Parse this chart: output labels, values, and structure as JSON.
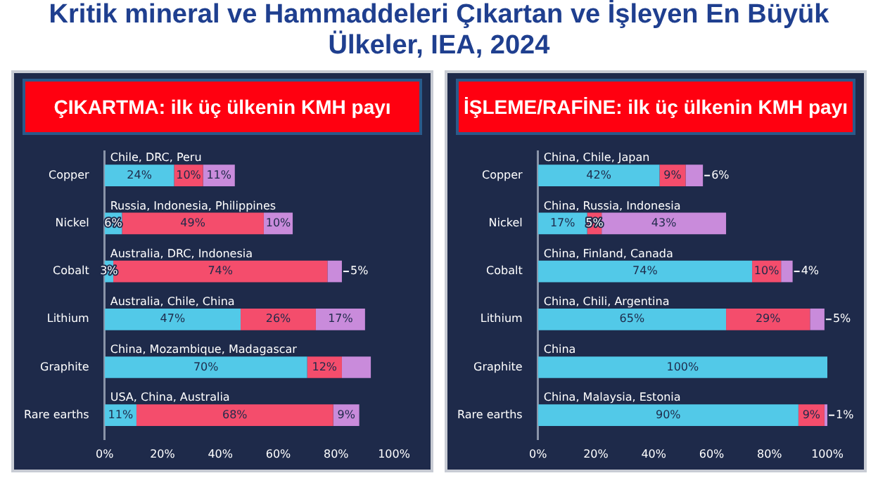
{
  "chart_data": [
    {
      "type": "other",
      "title": "Kritik mineral ve Hammaddeleri Çıkartan ve İşleyen En Büyük Ülkeler, IEA, 2024"
    },
    {
      "type": "bar",
      "title": "ÇIKARTMA: ilk üç ülkenin KMH payı",
      "orientation": "horizontal",
      "stacked": true,
      "categories": [
        "Copper",
        "Nickel",
        "Cobalt",
        "Lithium",
        "Graphite",
        "Rare earths"
      ],
      "series": [
        {
          "color": "#52c9e8",
          "values": [
            24,
            6,
            3,
            47,
            70,
            11
          ],
          "value_labels": [
            "24%",
            "6%",
            "3%",
            "47%",
            "70%",
            "11%"
          ]
        },
        {
          "color": "#f44d6c",
          "values": [
            10,
            49,
            74,
            26,
            12,
            68
          ],
          "value_labels": [
            "10%",
            "49%",
            "74%",
            "26%",
            "12%",
            "68%"
          ]
        },
        {
          "color": "#c98bdb",
          "values": [
            11,
            10,
            5,
            17,
            10,
            9
          ],
          "value_labels": [
            "11%",
            "10%",
            "5%",
            "17%",
            null,
            "9%"
          ]
        }
      ],
      "xlim": [
        0,
        100
      ],
      "xticks": [
        {
          "value": 0,
          "label": "0%"
        },
        {
          "value": 20,
          "label": "20%"
        },
        {
          "value": 40,
          "label": "40%"
        },
        {
          "value": 60,
          "label": "60%"
        },
        {
          "value": 80,
          "label": "80%"
        },
        {
          "value": 100,
          "label": "100%"
        }
      ],
      "annotations": [
        "Chile, DRC, Peru",
        "Russia, Indonesia, Philippines",
        "Australia, DRC, Indonesia",
        "Australia, Chile, China",
        "China, Mozambique, Madagascar",
        "USA, China, Australia"
      ]
    },
    {
      "type": "bar",
      "title": "İŞLEME/RAFİNE: ilk üç ülkenin KMH payı",
      "orientation": "horizontal",
      "stacked": true,
      "categories": [
        "Copper",
        "Nickel",
        "Cobalt",
        "Lithium",
        "Graphite",
        "Rare earths"
      ],
      "series": [
        {
          "color": "#52c9e8",
          "values": [
            42,
            17,
            74,
            65,
            100,
            90
          ],
          "value_labels": [
            "42%",
            "17%",
            "74%",
            "65%",
            "100%",
            "90%"
          ]
        },
        {
          "color": "#f44d6c",
          "values": [
            9,
            5,
            10,
            29,
            null,
            9
          ],
          "value_labels": [
            "9%",
            "5%",
            "10%",
            "29%",
            null,
            "9%"
          ]
        },
        {
          "color": "#c98bdb",
          "values": [
            6,
            43,
            4,
            5,
            null,
            1
          ],
          "value_labels": [
            "6%",
            "43%",
            "4%",
            "5%",
            null,
            "1%"
          ]
        }
      ],
      "xlim": [
        0,
        100
      ],
      "xticks": [
        {
          "value": 0,
          "label": "0%"
        },
        {
          "value": 20,
          "label": "20%"
        },
        {
          "value": 40,
          "label": "40%"
        },
        {
          "value": 60,
          "label": "60%"
        },
        {
          "value": 80,
          "label": "80%"
        },
        {
          "value": 100,
          "label": "100%"
        }
      ],
      "annotations": [
        "China, Chile, Japan",
        "China, Russia, Indonesia",
        "China, Finland, Canada",
        "China, Chili, Argentina",
        "China",
        "China, Malaysia, Estonia"
      ]
    }
  ]
}
